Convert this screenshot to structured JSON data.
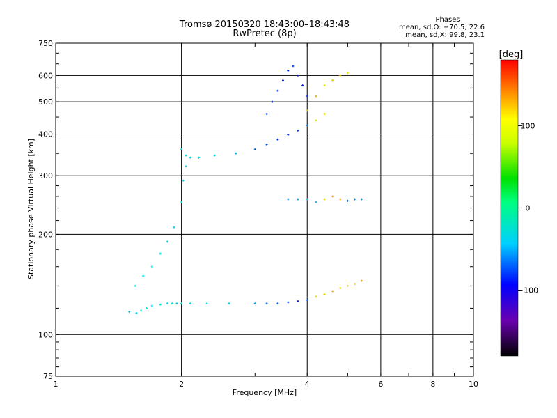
{
  "chart_data": {
    "type": "scatter",
    "title": "Tromsø 20150320 18:43:00–18:43:48",
    "subtitle": "RwPretec (8p)",
    "xlabel": "Frequency [MHz]",
    "ylabel": "Stationary phase Virtual Height [km]",
    "x_scale": "log",
    "y_scale": "log",
    "xlim": [
      1,
      10
    ],
    "ylim": [
      75,
      750
    ],
    "x_ticks": [
      1,
      2,
      4,
      6,
      8,
      10
    ],
    "x_tick_labels": [
      "1",
      "2",
      "4",
      "6",
      "8",
      "10"
    ],
    "y_ticks": [
      75,
      100,
      200,
      300,
      400,
      500,
      600,
      750
    ],
    "y_tick_labels": [
      "75",
      "100",
      "200",
      "300",
      "400",
      "500",
      "600",
      "750"
    ],
    "grid": true,
    "stats": {
      "title": "Phases",
      "line_o": "mean, sd,O: −70.5, 22.6",
      "line_x": "mean, sd,X:  99.8, 23.1"
    },
    "colorbar": {
      "label": "[deg]",
      "range": [
        -180,
        180
      ],
      "ticks": [
        100,
        0,
        -100
      ],
      "tick_labels": [
        "100",
        "0",
        "−100"
      ]
    },
    "series": [
      {
        "x": [
          1.5,
          1.56,
          1.6,
          1.65,
          1.7,
          1.78,
          1.85,
          1.9,
          1.95,
          2.0,
          2.1,
          2.3,
          2.6,
          3.0,
          3.2,
          3.4,
          3.6,
          3.8,
          4.0
        ],
        "y": [
          117,
          116,
          118,
          120,
          122,
          123,
          124,
          124,
          124,
          124,
          124,
          124,
          124,
          124,
          124,
          124,
          125,
          126,
          127
        ],
        "phase": [
          -60,
          -60,
          -40,
          -50,
          -55,
          -50,
          -55,
          -50,
          -60,
          -55,
          -55,
          -50,
          -60,
          -75,
          -90,
          -100,
          -110,
          -120,
          -100
        ]
      },
      {
        "x": [
          1.55,
          1.62,
          1.7,
          1.78,
          1.85,
          1.92,
          2.0,
          2.02,
          2.05
        ],
        "y": [
          140,
          150,
          160,
          175,
          190,
          210,
          250,
          290,
          320
        ],
        "phase": [
          -50,
          -55,
          -45,
          -50,
          -60,
          -55,
          -50,
          -55,
          -60
        ]
      },
      {
        "x": [
          2.0,
          2.05,
          2.1,
          2.2,
          2.4,
          2.7,
          3.0,
          3.2,
          3.4,
          3.6,
          3.8,
          4.0,
          4.2,
          4.4
        ],
        "y": [
          360,
          345,
          340,
          340,
          345,
          350,
          360,
          372,
          385,
          398,
          410,
          425,
          440,
          460
        ],
        "phase": [
          -50,
          -55,
          -55,
          -60,
          -60,
          -70,
          -90,
          -100,
          -110,
          -110,
          -110,
          -90,
          100,
          110
        ]
      },
      {
        "x": [
          3.2,
          3.3,
          3.4,
          3.5,
          3.6,
          3.7,
          3.8,
          3.9,
          4.0
        ],
        "y": [
          460,
          500,
          540,
          580,
          620,
          640,
          600,
          560,
          520
        ],
        "phase": [
          -110,
          -115,
          -110,
          -120,
          -115,
          -110,
          -120,
          -115,
          -110
        ]
      },
      {
        "x": [
          4.0,
          4.2,
          4.4,
          4.6,
          4.8,
          5.0
        ],
        "y": [
          470,
          520,
          560,
          580,
          600,
          610
        ],
        "phase": [
          110,
          120,
          105,
          110,
          115,
          100
        ]
      },
      {
        "x": [
          3.6,
          3.8,
          4.0,
          4.2,
          4.4,
          4.6,
          4.8,
          5.0,
          5.2,
          5.4
        ],
        "y": [
          255,
          255,
          255,
          250,
          255,
          260,
          255,
          252,
          255,
          255
        ],
        "phase": [
          -80,
          -80,
          -60,
          -70,
          110,
          120,
          130,
          -90,
          -80,
          -75
        ]
      },
      {
        "x": [
          4.2,
          4.4,
          4.6,
          4.8,
          5.0,
          5.2,
          5.4
        ],
        "y": [
          130,
          132,
          135,
          138,
          140,
          142,
          145
        ],
        "phase": [
          110,
          115,
          120,
          110,
          105,
          110,
          120
        ]
      }
    ]
  }
}
